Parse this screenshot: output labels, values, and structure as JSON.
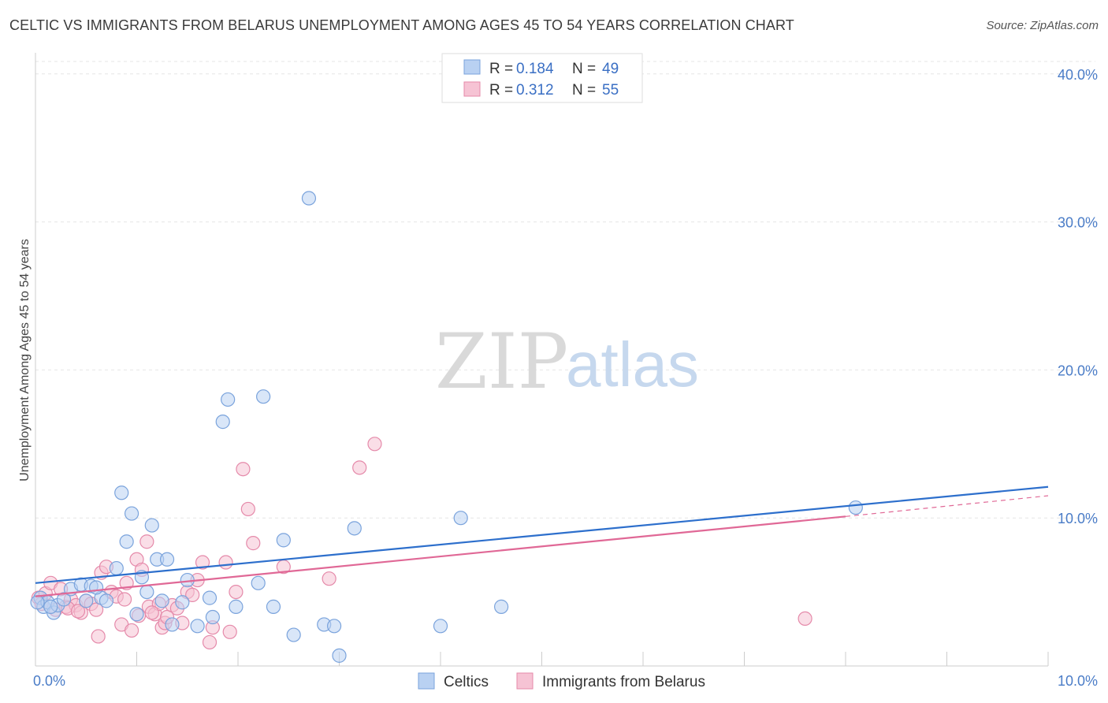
{
  "title": "CELTIC VS IMMIGRANTS FROM BELARUS UNEMPLOYMENT AMONG AGES 45 TO 54 YEARS CORRELATION CHART",
  "source": "Source: ZipAtlas.com",
  "watermark": {
    "zip": "ZIP",
    "atlas": "atlas"
  },
  "legend_top": {
    "series": [
      {
        "r_label": "R =",
        "r_value": "0.184",
        "n_label": "N =",
        "n_value": "49"
      },
      {
        "r_label": "R =",
        "r_value": "0.312",
        "n_label": "N =",
        "n_value": "55"
      }
    ]
  },
  "colors": {
    "blue_fill": "#b9d1f2",
    "blue_stroke": "#7aa3dc",
    "blue_line": "#2d6fcc",
    "pink_fill": "#f6c3d4",
    "pink_stroke": "#e58aaa",
    "pink_line": "#e06896",
    "grid": "#e6e6e6",
    "axis": "#cccccc",
    "tick_text": "#4a7cc7"
  },
  "chart_data": {
    "type": "scatter",
    "title": "CELTIC VS IMMIGRANTS FROM BELARUS UNEMPLOYMENT AMONG AGES 45 TO 54 YEARS CORRELATION CHART",
    "xlabel": "",
    "ylabel": "Unemployment Among Ages 45 to 54 years",
    "xlim": [
      0,
      10
    ],
    "ylim": [
      0,
      41
    ],
    "x_tick_labels": [
      "0.0%",
      "10.0%"
    ],
    "y_ticks": [
      10,
      20,
      30,
      40
    ],
    "y_tick_labels": [
      "10.0%",
      "20.0%",
      "30.0%",
      "40.0%"
    ],
    "grid": true,
    "legend_position": "top-center",
    "series": [
      {
        "name": "Celtics",
        "r": 0.184,
        "n": 49,
        "trend": {
          "x": [
            0,
            10
          ],
          "y": [
            5.6,
            12.1
          ]
        },
        "points": [
          [
            0.05,
            4.6
          ],
          [
            0.08,
            4.0
          ],
          [
            0.12,
            4.3
          ],
          [
            0.18,
            3.6
          ],
          [
            0.22,
            4.1
          ],
          [
            0.28,
            4.5
          ],
          [
            0.35,
            5.2
          ],
          [
            0.45,
            5.5
          ],
          [
            0.5,
            4.4
          ],
          [
            0.55,
            5.4
          ],
          [
            0.65,
            4.6
          ],
          [
            0.7,
            4.4
          ],
          [
            0.8,
            6.6
          ],
          [
            0.85,
            11.7
          ],
          [
            0.9,
            8.4
          ],
          [
            0.95,
            10.3
          ],
          [
            1.0,
            3.5
          ],
          [
            1.05,
            6.0
          ],
          [
            1.1,
            5.0
          ],
          [
            1.15,
            9.5
          ],
          [
            1.2,
            7.2
          ],
          [
            1.25,
            4.4
          ],
          [
            1.3,
            7.2
          ],
          [
            1.35,
            2.8
          ],
          [
            1.45,
            4.3
          ],
          [
            1.5,
            5.8
          ],
          [
            1.6,
            2.7
          ],
          [
            1.72,
            4.6
          ],
          [
            1.75,
            3.3
          ],
          [
            1.85,
            16.5
          ],
          [
            1.9,
            18.0
          ],
          [
            1.98,
            4.0
          ],
          [
            2.2,
            5.6
          ],
          [
            2.25,
            18.2
          ],
          [
            2.35,
            4.0
          ],
          [
            2.45,
            8.5
          ],
          [
            2.55,
            2.1
          ],
          [
            2.7,
            31.6
          ],
          [
            2.85,
            2.8
          ],
          [
            2.95,
            2.7
          ],
          [
            3.0,
            0.7
          ],
          [
            3.15,
            9.3
          ],
          [
            4.0,
            2.7
          ],
          [
            4.2,
            10.0
          ],
          [
            4.6,
            4.0
          ],
          [
            8.1,
            10.7
          ],
          [
            0.02,
            4.3
          ],
          [
            0.6,
            5.3
          ],
          [
            0.15,
            4.0
          ]
        ]
      },
      {
        "name": "Immigrants from Belarus",
        "r": 0.312,
        "n": 55,
        "trend": {
          "x": [
            0,
            8
          ],
          "y": [
            4.7,
            10.1
          ]
        },
        "trend_ext": {
          "x": [
            8,
            10
          ],
          "y": [
            10.1,
            11.5
          ]
        },
        "points": [
          [
            0.03,
            4.6
          ],
          [
            0.06,
            4.2
          ],
          [
            0.1,
            4.9
          ],
          [
            0.15,
            5.6
          ],
          [
            0.2,
            3.8
          ],
          [
            0.25,
            5.2
          ],
          [
            0.3,
            4.0
          ],
          [
            0.35,
            4.5
          ],
          [
            0.4,
            4.1
          ],
          [
            0.45,
            3.6
          ],
          [
            0.5,
            4.4
          ],
          [
            0.55,
            4.2
          ],
          [
            0.6,
            3.8
          ],
          [
            0.62,
            2.0
          ],
          [
            0.65,
            6.3
          ],
          [
            0.7,
            6.7
          ],
          [
            0.75,
            5.0
          ],
          [
            0.8,
            4.7
          ],
          [
            0.85,
            2.8
          ],
          [
            0.88,
            4.5
          ],
          [
            0.9,
            5.6
          ],
          [
            0.95,
            2.4
          ],
          [
            1.0,
            7.2
          ],
          [
            1.02,
            3.4
          ],
          [
            1.05,
            6.5
          ],
          [
            1.1,
            8.4
          ],
          [
            1.12,
            4.0
          ],
          [
            1.18,
            3.5
          ],
          [
            1.22,
            4.2
          ],
          [
            1.25,
            2.6
          ],
          [
            1.28,
            2.9
          ],
          [
            1.3,
            3.3
          ],
          [
            1.35,
            4.1
          ],
          [
            1.4,
            3.9
          ],
          [
            1.45,
            2.9
          ],
          [
            1.5,
            5.0
          ],
          [
            1.55,
            4.8
          ],
          [
            1.6,
            5.8
          ],
          [
            1.65,
            7.0
          ],
          [
            1.72,
            1.6
          ],
          [
            1.75,
            2.6
          ],
          [
            1.88,
            7.0
          ],
          [
            1.92,
            2.3
          ],
          [
            1.98,
            5.0
          ],
          [
            2.05,
            13.3
          ],
          [
            2.1,
            10.6
          ],
          [
            2.15,
            8.3
          ],
          [
            2.45,
            6.7
          ],
          [
            2.9,
            5.9
          ],
          [
            3.2,
            13.4
          ],
          [
            3.35,
            15.0
          ],
          [
            7.6,
            3.2
          ],
          [
            0.32,
            3.9
          ],
          [
            0.42,
            3.7
          ],
          [
            1.15,
            3.6
          ]
        ]
      }
    ]
  },
  "legend_bottom": [
    {
      "label": "Celtics"
    },
    {
      "label": "Immigrants from Belarus"
    }
  ]
}
